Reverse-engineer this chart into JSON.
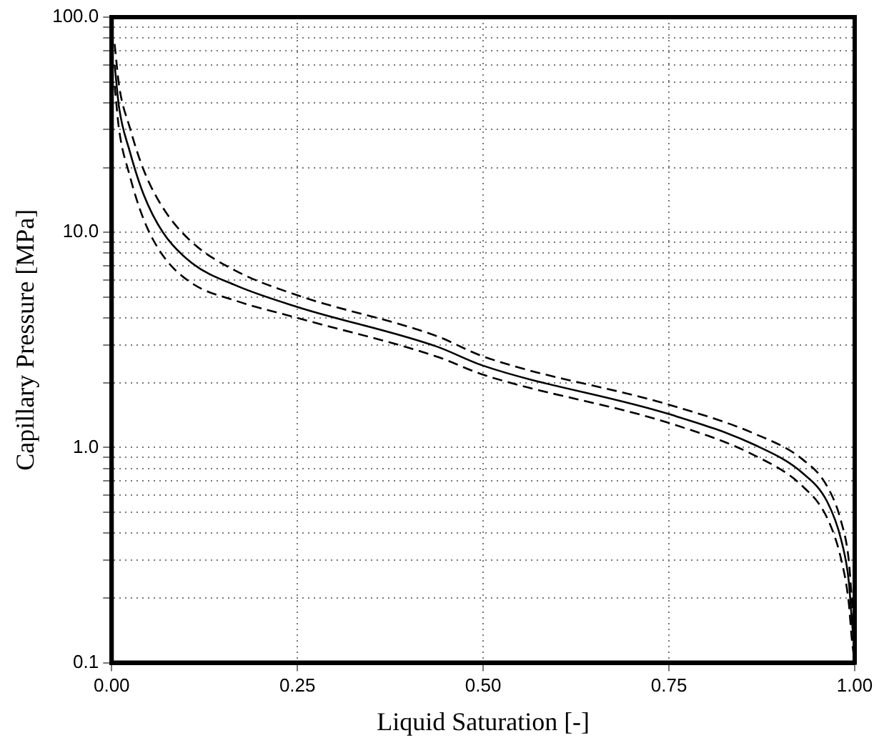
{
  "chart_data": {
    "type": "line",
    "xlabel": "Liquid Saturation [-]",
    "ylabel": "Capillary Pressure [MPa]",
    "x": [
      0.004,
      0.01,
      0.024,
      0.043,
      0.069,
      0.108,
      0.168,
      0.25,
      0.437,
      0.5,
      0.75,
      0.865,
      0.93,
      0.963,
      0.982,
      0.992,
      0.996,
      1.0
    ],
    "series": [
      {
        "color": "#000000",
        "line_style": "solid",
        "values": [
          60,
          38,
          24,
          15,
          10,
          7.2,
          5.65,
          4.5,
          2.95,
          2.4,
          1.43,
          1.03,
          0.76,
          0.56,
          0.37,
          0.24,
          0.16,
          0.11
        ]
      },
      {
        "color": "#000000",
        "line_style": "dashed",
        "values": [
          75,
          48,
          31,
          19.5,
          13,
          9,
          6.6,
          5.1,
          3.3,
          2.65,
          1.58,
          1.16,
          0.88,
          0.66,
          0.45,
          0.3,
          0.2,
          0.13
        ]
      },
      {
        "color": "#000000",
        "line_style": "dashed",
        "values": [
          48,
          30,
          18.5,
          11.5,
          7.8,
          5.8,
          4.8,
          4.0,
          2.65,
          2.18,
          1.3,
          0.92,
          0.66,
          0.47,
          0.3,
          0.19,
          0.13,
          0.1
        ]
      }
    ],
    "xlim": [
      0,
      1
    ],
    "ylim": [
      0.1,
      100
    ],
    "log": "y",
    "grid": true,
    "marker": "none",
    "legend": false,
    "xticks": [
      {
        "value": 0,
        "label": "0.00"
      },
      {
        "value": 0.25,
        "label": "0.25"
      },
      {
        "value": 0.5,
        "label": "0.50"
      },
      {
        "value": 0.75,
        "label": "0.75"
      },
      {
        "value": 1,
        "label": "1.00"
      }
    ],
    "yticks": [
      {
        "value": 0.1,
        "label": "0.1"
      },
      {
        "value": 0.2,
        "label": null
      },
      {
        "value": 0.3,
        "label": null
      },
      {
        "value": 0.4,
        "label": null
      },
      {
        "value": 0.5,
        "label": null
      },
      {
        "value": 0.6,
        "label": null
      },
      {
        "value": 0.7,
        "label": null
      },
      {
        "value": 0.8,
        "label": null
      },
      {
        "value": 0.9,
        "label": null
      },
      {
        "value": 1,
        "label": "1.0"
      },
      {
        "value": 2,
        "label": null
      },
      {
        "value": 3,
        "label": null
      },
      {
        "value": 4,
        "label": null
      },
      {
        "value": 5,
        "label": null
      },
      {
        "value": 6,
        "label": null
      },
      {
        "value": 7,
        "label": null
      },
      {
        "value": 8,
        "label": null
      },
      {
        "value": 9,
        "label": null
      },
      {
        "value": 10,
        "label": "10.0"
      },
      {
        "value": 20,
        "label": null
      },
      {
        "value": 30,
        "label": null
      },
      {
        "value": 40,
        "label": null
      },
      {
        "value": 50,
        "label": null
      },
      {
        "value": 60,
        "label": null
      },
      {
        "value": 70,
        "label": null
      },
      {
        "value": 80,
        "label": null
      },
      {
        "value": 90,
        "label": null
      },
      {
        "value": 100,
        "label": "100.0"
      }
    ]
  }
}
